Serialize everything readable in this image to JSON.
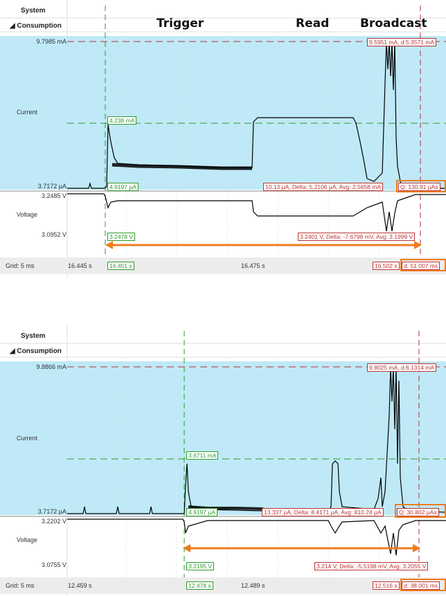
{
  "colors": {
    "highlight": "#bfe9f7",
    "green_cursor": "#2e9a2e",
    "red_cursor": "#b33333",
    "arrow": "#f07c1c"
  },
  "sections": {
    "trigger": "Trigger",
    "read": "Read",
    "broadcast": "Broadcast"
  },
  "panels": [
    {
      "system": "System",
      "consumption": "Consumption",
      "current_label": "Current",
      "voltage_label": "Voltage",
      "cur_max": "9.7985 mA",
      "cur_min": "3.7172 µA",
      "volt_max": "3.2485 V",
      "volt_min": "3.0952 V",
      "green_cur_hi": "4.238 mA",
      "green_cur_lo": "4.9197 µA",
      "green_volt": "3.2478 V",
      "red_top": "9.5951 mA, d:5.3571 mA",
      "red_cur_delta": "10.13 µA, Delta: 5.2106 µA, Avg: 2.5658 mA",
      "red_q": "Q: 130.91 µAs",
      "red_volt": "3.2401 V, Delta: -7.6798 mV, Avg: 3.1999 V",
      "grid": "Grid: 5 ms",
      "t_start": "16.445 s",
      "t_green": "16.451 s",
      "t_mid": "16.475 s",
      "t_red": "16.502 s",
      "t_delta": "d: 51.007 ms"
    },
    {
      "system": "System",
      "consumption": "Consumption",
      "current_label": "Current",
      "voltage_label": "Voltage",
      "cur_max": "9.8866 mA",
      "cur_min": "3.7172 µA",
      "volt_max": "3.2202 V",
      "volt_min": "3.0755 V",
      "green_cur_hi": "3.6711 mA",
      "green_cur_lo": "4.9197 µA",
      "green_volt": "3.2195 V",
      "red_top": "9.8025 mA, d:6.1314 mA",
      "red_cur_delta": "13.337 µA, Delta: 8.4171 µA, Avg: 810.24 µA",
      "red_q": "Q: 30.802 µAs",
      "red_volt": "3.214 V, Delta: -5.5198 mV, Avg: 3.2055 V",
      "grid": "Grid: 5 ms",
      "t_start": "12.459 s",
      "t_green": "12.478 s",
      "t_mid": "12.489 s",
      "t_red": "12.516 s",
      "t_delta": "d: 38.001 ms"
    }
  ]
}
